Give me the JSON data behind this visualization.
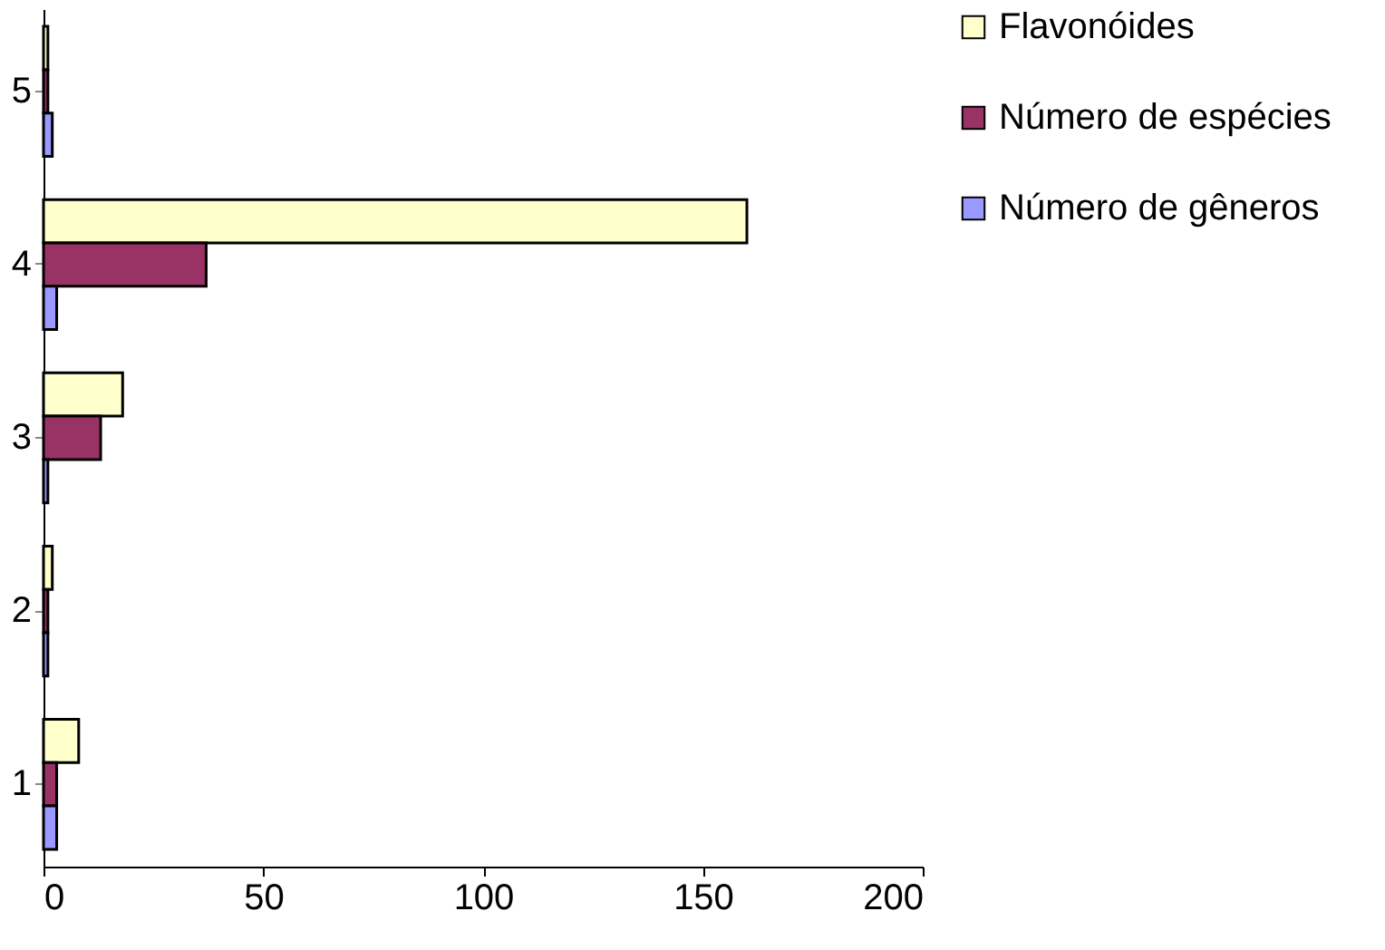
{
  "chart_data": {
    "type": "bar",
    "orientation": "horizontal",
    "categories": [
      "5",
      "4",
      "3",
      "2",
      "1"
    ],
    "series": [
      {
        "name": "Flavonóides",
        "color": "#ffffcc",
        "values": [
          1,
          160,
          18,
          2,
          8
        ]
      },
      {
        "name": "Número de espécies",
        "color": "#993366",
        "values": [
          1,
          37,
          13,
          1,
          3
        ]
      },
      {
        "name": "Número de gêneros",
        "color": "#9999ff",
        "values": [
          2,
          3,
          1,
          1,
          3
        ]
      }
    ],
    "xlim": [
      0,
      200
    ],
    "xticks": [
      0,
      50,
      100,
      150,
      200
    ],
    "grid": false,
    "legend": "right"
  }
}
